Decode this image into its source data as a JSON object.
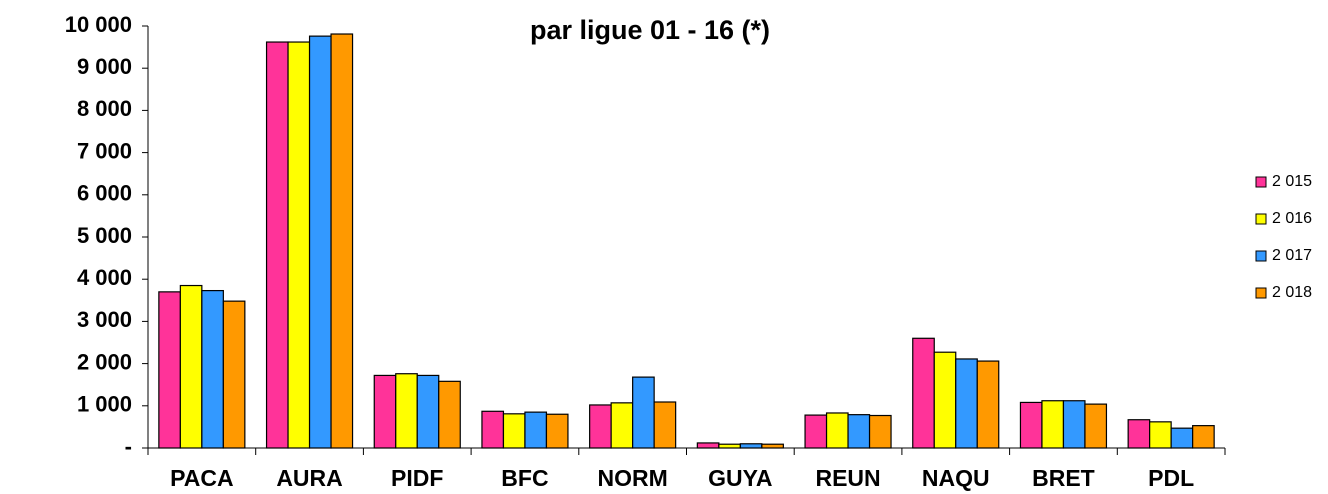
{
  "chart_data": {
    "type": "bar",
    "title": "par ligue 01 - 16 (*)",
    "categories": [
      "PACA",
      "AURA",
      "PIDF",
      "BFC",
      "NORM",
      "GUYA",
      "REUN",
      "NAQU",
      "BRET",
      "PDL"
    ],
    "series": [
      {
        "name": "2 015",
        "color": "#ff3399",
        "values": [
          3700,
          9620,
          1720,
          870,
          1020,
          120,
          780,
          2600,
          1080,
          670
        ]
      },
      {
        "name": "2 016",
        "color": "#ffff00",
        "values": [
          3850,
          9620,
          1760,
          810,
          1070,
          90,
          830,
          2270,
          1120,
          620
        ]
      },
      {
        "name": "2 017",
        "color": "#3399ff",
        "values": [
          3730,
          9760,
          1720,
          850,
          1680,
          100,
          790,
          2110,
          1120,
          470
        ]
      },
      {
        "name": "2 018",
        "color": "#ff9900",
        "values": [
          3480,
          9810,
          1580,
          800,
          1090,
          90,
          770,
          2060,
          1040,
          530
        ]
      }
    ],
    "ylim": [
      0,
      10000
    ],
    "yticks": [
      {
        "value": 0,
        "label": "-"
      },
      {
        "value": 1000,
        "label": "1 000"
      },
      {
        "value": 2000,
        "label": "2 000"
      },
      {
        "value": 3000,
        "label": "3 000"
      },
      {
        "value": 4000,
        "label": "4 000"
      },
      {
        "value": 5000,
        "label": "5 000"
      },
      {
        "value": 6000,
        "label": "6 000"
      },
      {
        "value": 7000,
        "label": "7 000"
      },
      {
        "value": 8000,
        "label": "8 000"
      },
      {
        "value": 9000,
        "label": "9 000"
      },
      {
        "value": 10000,
        "label": "10 000"
      }
    ],
    "legend": "right"
  }
}
